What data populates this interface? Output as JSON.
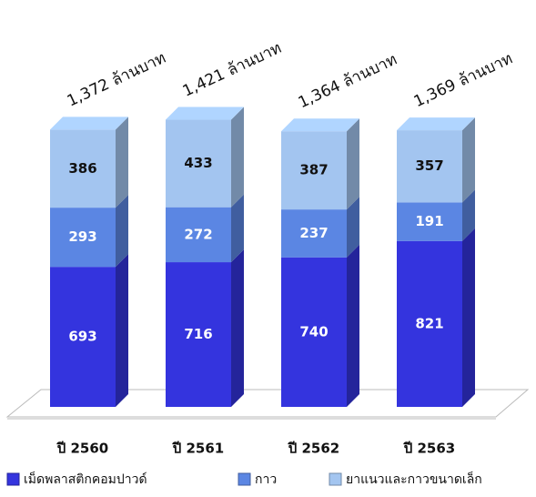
{
  "chart_data": {
    "type": "bar",
    "categories": [
      "ปี 2560",
      "ปี 2561",
      "ปี 2562",
      "ปี 2563"
    ],
    "series": [
      {
        "name": "เม็ดพลาสติกคอมปาวด์",
        "color": "#3434de",
        "values": [
          693,
          716,
          740,
          821
        ]
      },
      {
        "name": "กาว",
        "color": "#5b86e3",
        "values": [
          293,
          272,
          237,
          191
        ]
      },
      {
        "name": "ยาแนวและกาวขนาดเล็ก",
        "color": "#a3c5f0",
        "values": [
          386,
          433,
          387,
          357
        ]
      }
    ],
    "annotations": [
      "1,372 ล้านบาท",
      "1,421 ล้านบาท",
      "1,364 ล้านบาท",
      "1,369 ล้านบาท"
    ],
    "stacked": true
  }
}
